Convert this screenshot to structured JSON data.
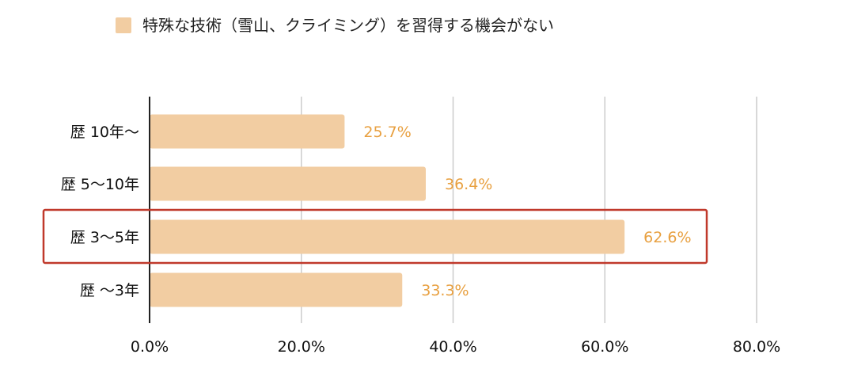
{
  "chart_data": {
    "type": "bar",
    "orientation": "horizontal",
    "categories": [
      "歴 10年〜",
      "歴 5〜10年",
      "歴 3〜5年",
      "歴 〜3年"
    ],
    "series": [
      {
        "name": "特殊な技術（雪山、クライミング）を習得する機会がない",
        "values": [
          25.7,
          36.4,
          62.6,
          33.3
        ],
        "labels": [
          "25.7%",
          "36.4%",
          "62.6%",
          "33.3%"
        ],
        "color": "#f2cda2"
      }
    ],
    "xlim": [
      0,
      80
    ],
    "xticks": [
      0,
      20,
      40,
      60,
      80
    ],
    "xtick_labels": [
      "0.0%",
      "20.0%",
      "40.0%",
      "60.0%",
      "80.0%"
    ],
    "grid": true,
    "legend_position": "top-left",
    "highlight_category_index": 2,
    "colors": {
      "bar": "#f2cda2",
      "value_label": "#e8a040",
      "grid": "#cccccc",
      "axis": "#222222",
      "highlight_border": "#c0392b"
    }
  }
}
